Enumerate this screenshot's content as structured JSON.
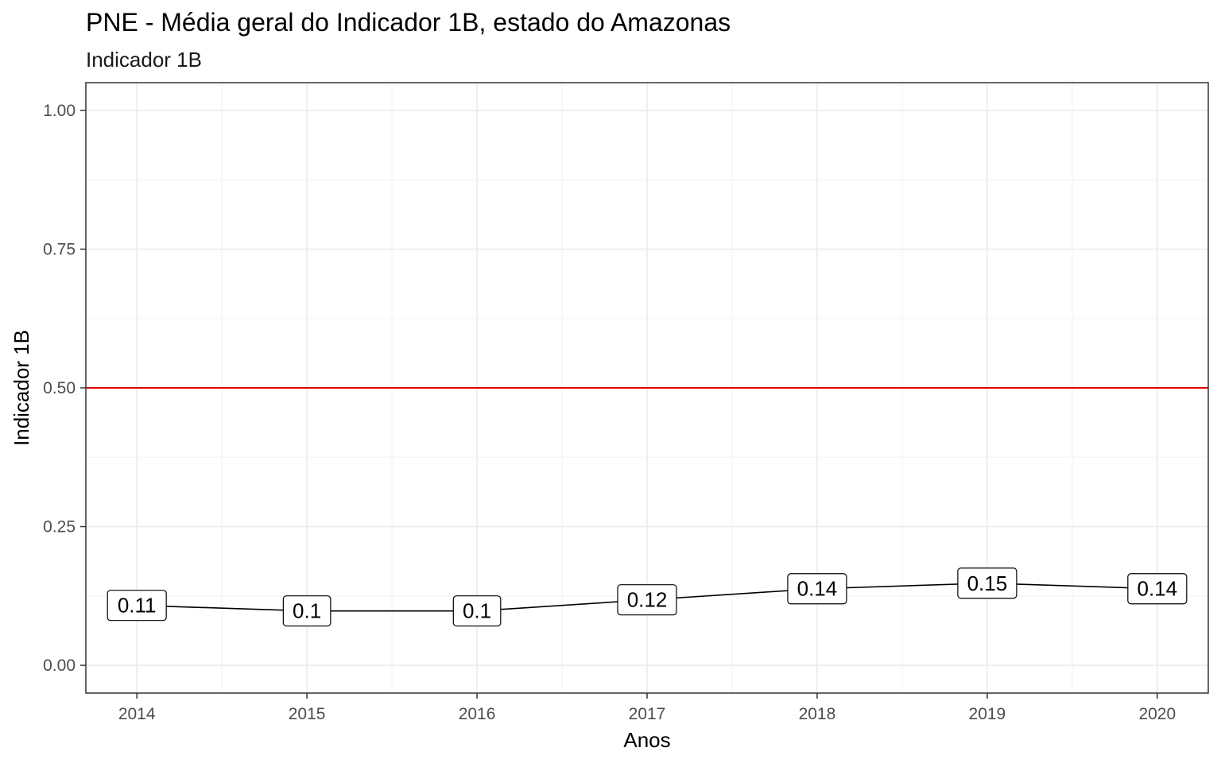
{
  "chart_data": {
    "type": "line",
    "title": "PNE - Média geral do Indicador 1B, estado do Amazonas",
    "subtitle": "Indicador 1B",
    "xlabel": "Anos",
    "ylabel": "Indicador 1B",
    "x": [
      2014,
      2015,
      2016,
      2017,
      2018,
      2019,
      2020
    ],
    "xlim": [
      2013.7,
      2020.3
    ],
    "ylim": [
      -0.05,
      1.05
    ],
    "yticks": [
      0.0,
      0.25,
      0.5,
      0.75,
      1.0
    ],
    "ytick_labels": [
      "0.00",
      "0.25",
      "0.50",
      "0.75",
      "1.00"
    ],
    "xtick_labels": [
      "2014",
      "2015",
      "2016",
      "2017",
      "2018",
      "2019",
      "2020"
    ],
    "series": [
      {
        "values": [
          0.108,
          0.098,
          0.098,
          0.118,
          0.138,
          0.148,
          0.138
        ],
        "labels": [
          "0.11",
          "0.1",
          "0.1",
          "0.12",
          "0.14",
          "0.15",
          "0.14"
        ],
        "color": "#000000"
      }
    ],
    "reference_line": {
      "y": 0.5,
      "color": "#e00000"
    },
    "grid": true,
    "theme": "bw"
  }
}
